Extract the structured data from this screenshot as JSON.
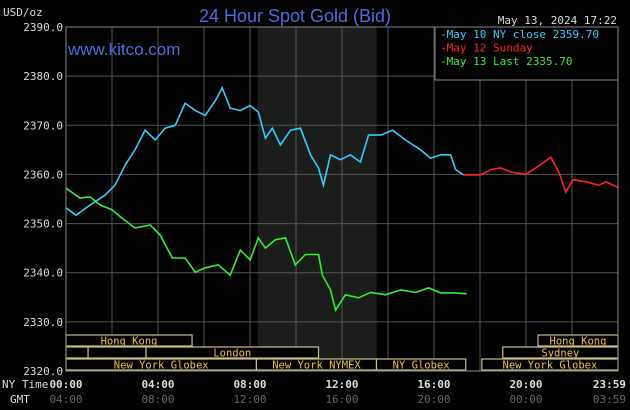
{
  "chart_data": {
    "type": "line",
    "title": "24 Hour Spot Gold (Bid)",
    "watermark": "www.kitco.com",
    "timestamp": "May 13, 2024 17:22",
    "ylabel": "USD/oz",
    "ylim": [
      2320,
      2390
    ],
    "yticks": [
      "2390.0",
      "2380.0",
      "2370.0",
      "2360.0",
      "2350.0",
      "2340.0",
      "2330.0",
      "2320.0"
    ],
    "ytick_values": [
      2390,
      2380,
      2370,
      2360,
      2350,
      2340,
      2330,
      2320
    ],
    "xlim": [
      0,
      24
    ],
    "x_row_label_ny": "NY Time",
    "x_row_label_gmt": "GMT",
    "xticks": [
      {
        "h": 0,
        "ny": "00:00",
        "gmt": "04:00"
      },
      {
        "h": 4,
        "ny": "04:00",
        "gmt": "08:00"
      },
      {
        "h": 8,
        "ny": "08:00",
        "gmt": "12:00"
      },
      {
        "h": 12,
        "ny": "12:00",
        "gmt": "16:00"
      },
      {
        "h": 16,
        "ny": "16:00",
        "gmt": "20:00"
      },
      {
        "h": 20,
        "ny": "20:00",
        "gmt": "00:00"
      },
      {
        "h": 23.98,
        "ny": "23:59",
        "gmt": "03:59"
      }
    ],
    "shaded_range_hours": [
      8.33,
      13.5
    ],
    "legend_position": "top-right",
    "series": [
      {
        "name": "May 10 NY close 2359.70",
        "color": "#33ccff",
        "points": [
          [
            0,
            2353.2
          ],
          [
            0.44,
            2351.7
          ],
          [
            1.05,
            2353.8
          ],
          [
            1.7,
            2355.8
          ],
          [
            2.13,
            2357.8
          ],
          [
            2.57,
            2361.9
          ],
          [
            3.0,
            2365
          ],
          [
            3.44,
            2369
          ],
          [
            3.88,
            2367
          ],
          [
            4.31,
            2369.4
          ],
          [
            4.75,
            2370
          ],
          [
            5.18,
            2374.5
          ],
          [
            5.62,
            2373
          ],
          [
            6.05,
            2372
          ],
          [
            6.49,
            2375
          ],
          [
            6.79,
            2377.6
          ],
          [
            7.14,
            2373.5
          ],
          [
            7.58,
            2373
          ],
          [
            8.01,
            2374
          ],
          [
            8.36,
            2372.7
          ],
          [
            8.67,
            2367.4
          ],
          [
            8.97,
            2369.4
          ],
          [
            9.32,
            2366
          ],
          [
            9.76,
            2369
          ],
          [
            10.19,
            2369.4
          ],
          [
            10.63,
            2364
          ],
          [
            10.98,
            2361.3
          ],
          [
            11.19,
            2357.8
          ],
          [
            11.5,
            2364
          ],
          [
            11.93,
            2363
          ],
          [
            12.37,
            2364
          ],
          [
            12.8,
            2362.5
          ],
          [
            13.15,
            2368
          ],
          [
            13.68,
            2368
          ],
          [
            14.2,
            2369
          ],
          [
            14.76,
            2367
          ],
          [
            15.42,
            2365
          ],
          [
            15.85,
            2363.3
          ],
          [
            16.29,
            2364
          ],
          [
            16.72,
            2364
          ],
          [
            16.94,
            2361
          ],
          [
            17.29,
            2359.9
          ]
        ]
      },
      {
        "name": "May 12 Sunday",
        "color": "#ff2020",
        "points": [
          [
            17.29,
            2359.9
          ],
          [
            18.03,
            2359.9
          ],
          [
            18.47,
            2361
          ],
          [
            18.9,
            2361.3
          ],
          [
            19.34,
            2360.5
          ],
          [
            19.99,
            2360
          ],
          [
            20.64,
            2362
          ],
          [
            21.08,
            2363.5
          ],
          [
            21.43,
            2360.5
          ],
          [
            21.73,
            2356.4
          ],
          [
            22.04,
            2358.9
          ],
          [
            22.6,
            2358.5
          ],
          [
            23.17,
            2357.8
          ],
          [
            23.48,
            2358.5
          ],
          [
            23.98,
            2357.4
          ]
        ]
      },
      {
        "name": "May 13 Last 2335.70",
        "color": "#33ee33",
        "points": [
          [
            0,
            2357.2
          ],
          [
            0.61,
            2355.2
          ],
          [
            1.05,
            2355.4
          ],
          [
            1.48,
            2353.8
          ],
          [
            2.0,
            2352.8
          ],
          [
            2.44,
            2351.1
          ],
          [
            3.0,
            2349.1
          ],
          [
            3.66,
            2349.7
          ],
          [
            4.09,
            2347.7
          ],
          [
            4.62,
            2343
          ],
          [
            5.18,
            2343
          ],
          [
            5.62,
            2340.1
          ],
          [
            6.05,
            2341
          ],
          [
            6.62,
            2341.6
          ],
          [
            7.14,
            2339.5
          ],
          [
            7.58,
            2344.6
          ],
          [
            8.01,
            2342.6
          ],
          [
            8.36,
            2347.1
          ],
          [
            8.67,
            2345
          ],
          [
            9.1,
            2346.7
          ],
          [
            9.54,
            2347.1
          ],
          [
            9.97,
            2341.6
          ],
          [
            10.41,
            2343.7
          ],
          [
            10.98,
            2343.7
          ],
          [
            11.15,
            2339.5
          ],
          [
            11.5,
            2336.5
          ],
          [
            11.72,
            2332.4
          ],
          [
            12.15,
            2335.5
          ],
          [
            12.72,
            2334.9
          ],
          [
            13.24,
            2336
          ],
          [
            13.89,
            2335.5
          ],
          [
            14.55,
            2336.5
          ],
          [
            15.2,
            2336
          ],
          [
            15.77,
            2336.9
          ],
          [
            16.29,
            2335.9
          ],
          [
            16.94,
            2335.9
          ],
          [
            17.42,
            2335.7
          ]
        ]
      }
    ],
    "sessions": [
      {
        "label": "Hong Kong",
        "row": 0,
        "start": 0,
        "end": 5.48
      },
      {
        "label": "",
        "row": 1,
        "start": 0,
        "end": 0.96
      },
      {
        "label": "",
        "row": 1,
        "start": 0.96,
        "end": 3.48
      },
      {
        "label": "London",
        "row": 1,
        "start": 3.48,
        "end": 10.98
      },
      {
        "label": "New York Globex",
        "row": 2,
        "start": 0,
        "end": 8.28
      },
      {
        "label": "New York NYMEX",
        "row": 2,
        "start": 8.28,
        "end": 13.5
      },
      {
        "label": "NY Globex",
        "row": 2,
        "start": 13.5,
        "end": 17.38
      },
      {
        "label": "New York Globex",
        "row": 2,
        "start": 18.08,
        "end": 24
      },
      {
        "label": "Sydney",
        "row": 1,
        "start": 18.99,
        "end": 24
      },
      {
        "label": "Hong Kong",
        "row": 0,
        "start": 20.52,
        "end": 24
      }
    ]
  }
}
